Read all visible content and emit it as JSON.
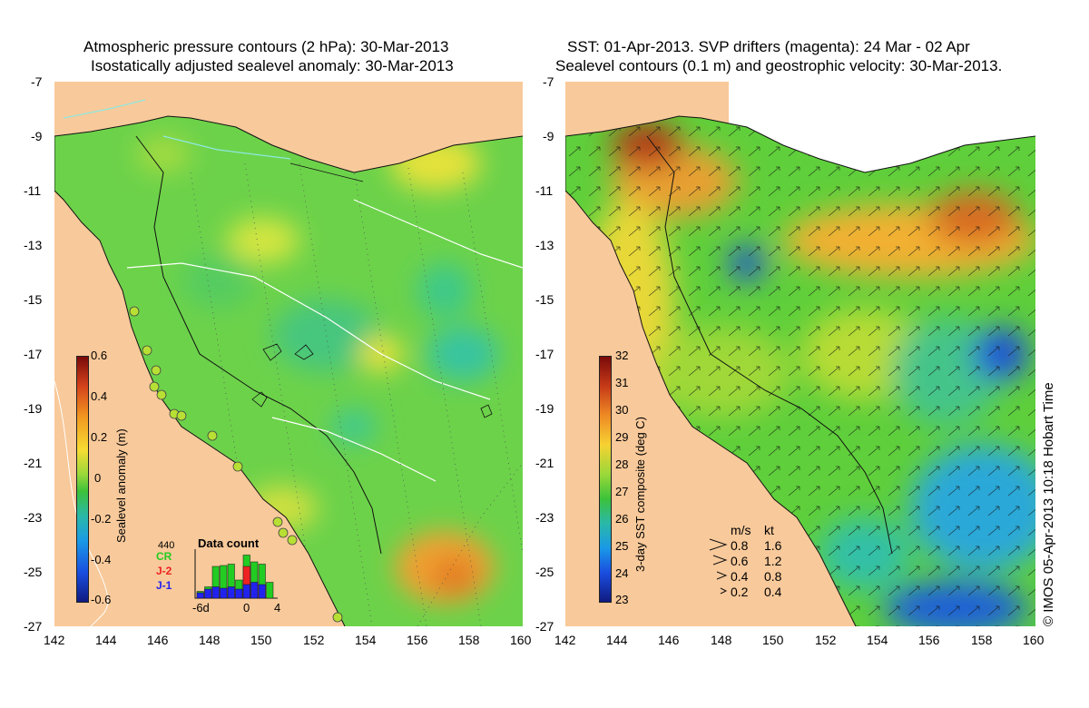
{
  "left_panel": {
    "title_line1": "Atmospheric pressure contours (2 hPa): 30-Mar-2013",
    "title_line2": "Isostatically adjusted sealevel anomaly: 30-Mar-2013",
    "colorbar": {
      "label": "Sealevel anomaly (m)",
      "ticks": [
        "0.6",
        "0.4",
        "0.2",
        "0",
        "-0.2",
        "-0.4",
        "-0.6"
      ],
      "range": [
        -0.6,
        0.6
      ]
    },
    "data_count": {
      "title": "Data count",
      "max_label": "440",
      "x_labels": [
        "-6d",
        "0",
        "4"
      ],
      "legend": [
        {
          "name": "CR",
          "color": "#22cc22"
        },
        {
          "name": "J-2",
          "color": "#ee2222"
        },
        {
          "name": "J-1",
          "color": "#2222ee"
        }
      ],
      "bars": [
        {
          "day": -6,
          "green": 0.15,
          "red": 0,
          "blue": 0.12
        },
        {
          "day": -5,
          "green": 0.25,
          "red": 0,
          "blue": 0.2
        },
        {
          "day": -4,
          "green": 0.7,
          "red": 0,
          "blue": 0.25
        },
        {
          "day": -3,
          "green": 0.72,
          "red": 0,
          "blue": 0.22
        },
        {
          "day": -2,
          "green": 0.75,
          "red": 0,
          "blue": 0.25
        },
        {
          "day": -1,
          "green": 0.4,
          "red": 0,
          "blue": 0.2
        },
        {
          "day": 0,
          "green": 0.95,
          "red": 0.7,
          "blue": 0.3
        },
        {
          "day": 1,
          "green": 0.8,
          "red": 0,
          "blue": 0.35
        },
        {
          "day": 2,
          "green": 0.75,
          "red": 0,
          "blue": 0.3
        },
        {
          "day": 3,
          "green": 0.35,
          "red": 0,
          "blue": 0
        }
      ]
    }
  },
  "right_panel": {
    "title_line1": "SST: 01-Apr-2013. SVP drifters (magenta): 24 Mar - 02 Apr",
    "title_line2": "Sealevel contours (0.1 m) and geostrophic velocity: 30-Mar-2013.",
    "colorbar": {
      "label": "3-day SST composite (deg C)",
      "ticks": [
        "32",
        "31",
        "30",
        "29",
        "28",
        "27",
        "26",
        "25",
        "24",
        "23"
      ],
      "range": [
        23,
        32
      ]
    },
    "velocity_legend": {
      "header_ms": "m/s",
      "header_kt": "kt",
      "rows": [
        {
          "ms": "0.8",
          "kt": "1.6"
        },
        {
          "ms": "0.6",
          "kt": "1.2"
        },
        {
          "ms": "0.4",
          "kt": "0.8"
        },
        {
          "ms": "0.2",
          "kt": "0.4"
        }
      ]
    }
  },
  "axes": {
    "y_ticks": [
      "-7",
      "-9",
      "-11",
      "-13",
      "-15",
      "-17",
      "-19",
      "-21",
      "-23",
      "-25",
      "-27"
    ],
    "x_ticks": [
      "142",
      "144",
      "146",
      "148",
      "150",
      "152",
      "154",
      "156",
      "158",
      "160"
    ],
    "lat_range": [
      -27,
      -7
    ],
    "lon_range": [
      142,
      160
    ]
  },
  "credit": "© IMOS 05-Apr-2013 10:18 Hobart Time",
  "colors": {
    "land": "#f8c99a",
    "sla_base": "#6cd24a",
    "sst_base": "#5fcf3b"
  }
}
